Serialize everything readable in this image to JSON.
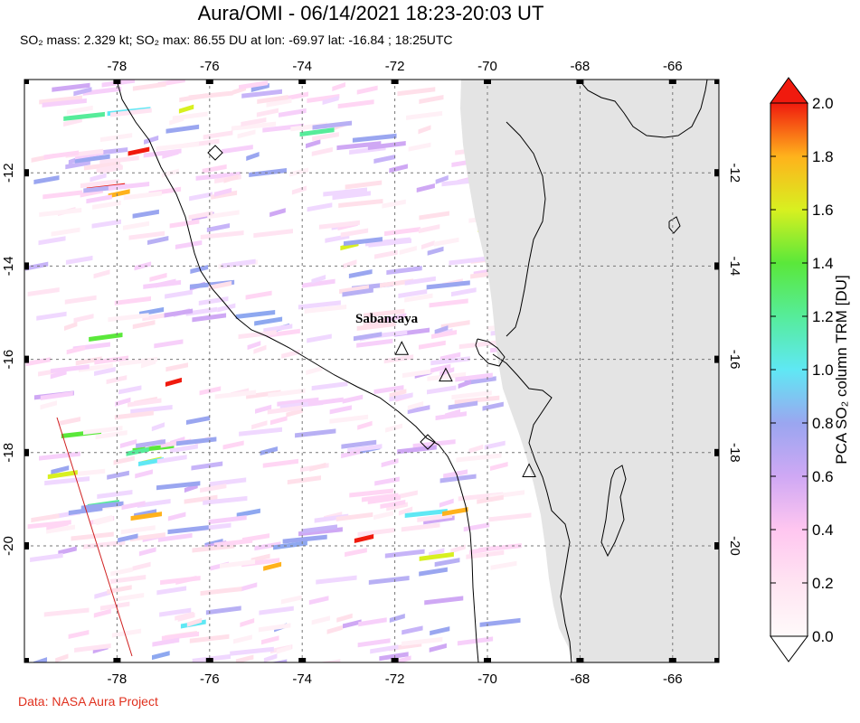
{
  "header": {
    "title": "Aura/OMI - 06/14/2021 18:23-20:03 UT",
    "subtitle": "SO₂ mass: 2.329 kt; SO₂ max: 86.55 DU at lon: -69.97 lat: -16.84 ; 18:25UTC"
  },
  "credit": "Data: NASA Aura Project",
  "map": {
    "lon_range": [
      -80,
      -65
    ],
    "lat_range": [
      -22.5,
      -10
    ],
    "lon_ticks": [
      -78,
      -76,
      -74,
      -72,
      -70,
      -68,
      -66
    ],
    "lon_tick_labels": [
      "-78",
      "-76",
      "-74",
      "-72",
      "-70",
      "-68",
      "-66"
    ],
    "lat_ticks": [
      -12,
      -14,
      -16,
      -18,
      -20
    ],
    "lat_tick_labels": [
      "-12",
      "-14",
      "-16",
      "-18",
      "-20"
    ],
    "grid": "dashed",
    "land_color": "#e4e4e4",
    "coast_color": "#000000",
    "volcano_label": "Sabancaya",
    "volcanoes": [
      {
        "name": "Sabancaya",
        "lon": -71.85,
        "lat": -15.78
      },
      {
        "lon": -70.9,
        "lat": -16.35
      },
      {
        "lon": -69.1,
        "lat": -18.4
      }
    ]
  },
  "colorbar": {
    "label": "PCA SO₂ column TRM [DU]",
    "min": 0.0,
    "max": 2.0,
    "tick_labels": [
      "0.0",
      "0.2",
      "0.4",
      "0.6",
      "0.8",
      "1.0",
      "1.2",
      "1.4",
      "1.6",
      "1.8",
      "2.0"
    ]
  }
}
